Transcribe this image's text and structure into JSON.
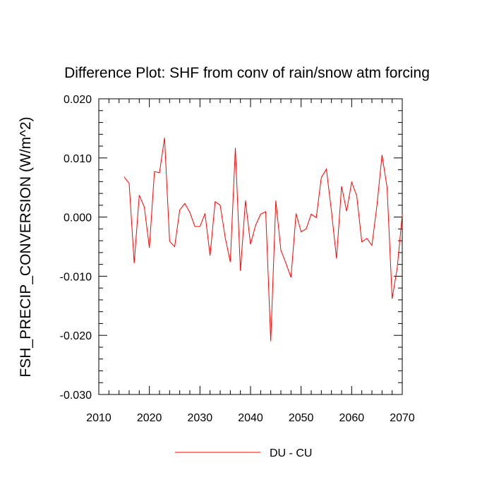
{
  "chart_data": {
    "type": "line",
    "title": "Difference Plot: SHF from conv of rain/snow atm forcing",
    "xlabel": "",
    "ylabel": "FSH_PRECIP_CONVERSION  (W/m^2)",
    "xlim": [
      2010,
      2070
    ],
    "ylim": [
      -0.03,
      0.02
    ],
    "x_ticks": [
      2010,
      2020,
      2030,
      2040,
      2050,
      2060,
      2070
    ],
    "x_tick_labels": [
      "2010",
      "2020",
      "2030",
      "2040",
      "2050",
      "2060",
      "2070"
    ],
    "y_ticks": [
      0.02,
      0.01,
      0.0,
      -0.01,
      -0.02,
      -0.03
    ],
    "y_tick_labels": [
      "0.020",
      "0.010",
      "0.000",
      "-0.010",
      "-0.020",
      "-0.030"
    ],
    "grid": false,
    "legend_position": "bottom-center",
    "series": [
      {
        "name": "DU - CU",
        "color": "#ff0000",
        "x": [
          2015,
          2016,
          2017,
          2018,
          2019,
          2020,
          2021,
          2022,
          2023,
          2024,
          2025,
          2026,
          2027,
          2028,
          2029,
          2030,
          2031,
          2032,
          2033,
          2034,
          2035,
          2036,
          2037,
          2038,
          2039,
          2040,
          2041,
          2042,
          2043,
          2044,
          2045,
          2046,
          2047,
          2048,
          2049,
          2050,
          2051,
          2052,
          2053,
          2054,
          2055,
          2056,
          2057,
          2058,
          2059,
          2060,
          2061,
          2062,
          2063,
          2064,
          2065,
          2066,
          2067,
          2068,
          2069,
          2070
        ],
        "values": [
          0.0068,
          0.0057,
          -0.0078,
          0.0037,
          0.0017,
          -0.0052,
          0.0077,
          0.0075,
          0.0134,
          -0.0041,
          -0.005,
          0.0012,
          0.0023,
          0.0008,
          -0.0016,
          -0.0016,
          0.0006,
          -0.0065,
          0.0026,
          0.002,
          -0.0035,
          -0.0076,
          0.0117,
          -0.0091,
          0.0028,
          -0.0046,
          -0.0014,
          0.0005,
          0.0009,
          -0.021,
          0.0028,
          -0.0056,
          -0.0078,
          -0.0102,
          0.0006,
          -0.0025,
          -0.002,
          0.0005,
          -0.0001,
          0.0067,
          0.0081,
          0.001,
          -0.007,
          0.0052,
          0.001,
          0.0059,
          0.0036,
          -0.0042,
          -0.0036,
          -0.0048,
          0.002,
          0.0105,
          0.005,
          -0.0138,
          -0.0086,
          0.0004
        ]
      }
    ]
  }
}
